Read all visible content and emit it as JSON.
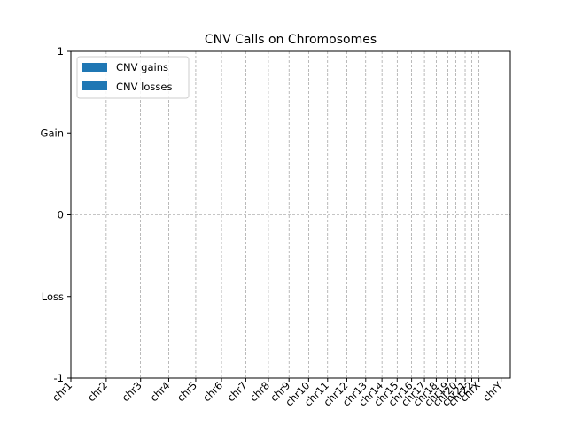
{
  "chart_data": {
    "type": "bar",
    "title": "CNV Calls on Chromosomes",
    "xlabel": "",
    "ylabel": "",
    "ylim": [
      -1,
      1
    ],
    "yticks": [
      {
        "value": 1,
        "label": "1"
      },
      {
        "value": 0.5,
        "label": "Gain"
      },
      {
        "value": 0,
        "label": "0"
      },
      {
        "value": -0.5,
        "label": "Loss"
      },
      {
        "value": -1,
        "label": "-1"
      }
    ],
    "xlim": [
      0,
      3095677412
    ],
    "chromosomes": [
      {
        "label": "chr1",
        "start": 0
      },
      {
        "label": "chr2",
        "start": 248956422
      },
      {
        "label": "chr3",
        "start": 491149951
      },
      {
        "label": "chr4",
        "start": 689445510
      },
      {
        "label": "chr5",
        "start": 879660065
      },
      {
        "label": "chr6",
        "start": 1061198324
      },
      {
        "label": "chr7",
        "start": 1232004303
      },
      {
        "label": "chr8",
        "start": 1391350276
      },
      {
        "label": "chr9",
        "start": 1536488912
      },
      {
        "label": "chr10",
        "start": 1674883629
      },
      {
        "label": "chr11",
        "start": 1808681051
      },
      {
        "label": "chr12",
        "start": 1943767673
      },
      {
        "label": "chr13",
        "start": 2077042982
      },
      {
        "label": "chr14",
        "start": 2191407310
      },
      {
        "label": "chr15",
        "start": 2298451028
      },
      {
        "label": "chr16",
        "start": 2400442217
      },
      {
        "label": "chr17",
        "start": 2490780562
      },
      {
        "label": "chr18",
        "start": 2574038003
      },
      {
        "label": "chr19",
        "start": 2654411288
      },
      {
        "label": "chr20",
        "start": 2713028904
      },
      {
        "label": "chr21",
        "start": 2777473071
      },
      {
        "label": "chr22",
        "start": 2824183054
      },
      {
        "label": "chrX",
        "start": 2875001522
      },
      {
        "label": "chrY",
        "start": 3031042417
      }
    ],
    "series": [
      {
        "name": "CNV gains",
        "color": "#1f77b4",
        "values": []
      },
      {
        "name": "CNV losses",
        "color": "#1f77b4",
        "values": []
      }
    ],
    "grid": true,
    "legend_position": "upper-left"
  }
}
